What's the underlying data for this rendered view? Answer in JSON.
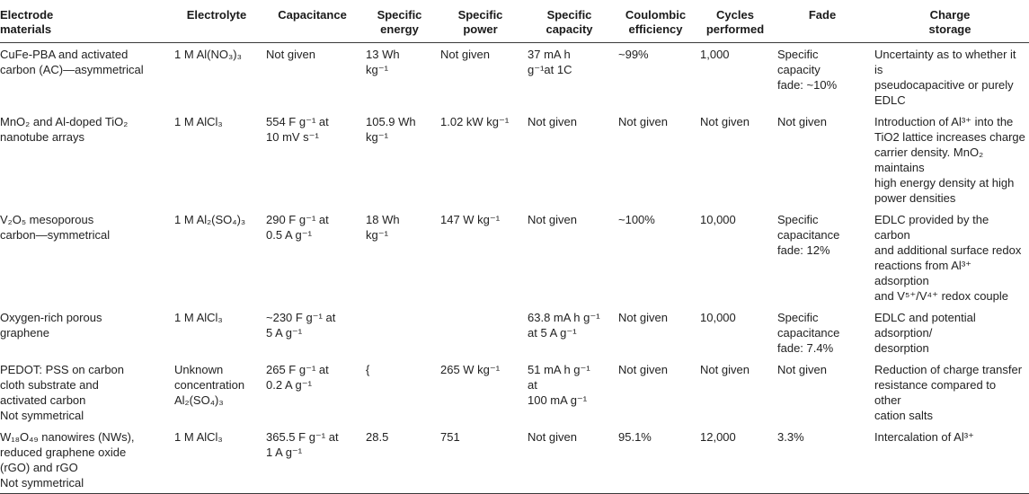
{
  "table": {
    "headers": [
      "Electrode\nmaterials",
      "Electrolyte",
      "Capacitance",
      "Specific\nenergy",
      "Specific\npower",
      "Specific\ncapacity",
      "Coulombic\nefficiency",
      "Cycles\nperformed",
      "Fade",
      "Charge\nstorage"
    ],
    "rows": [
      [
        "CuFe-PBA and activated\ncarbon (AC)—asymmetrical",
        "1 M Al(NO₃)₃",
        "Not given",
        "13 Wh\nkg⁻¹",
        "Not given",
        "37 mA h\ng⁻¹at 1C",
        "~99%",
        "1,000",
        "Specific\ncapacity\nfade: ~10%",
        "Uncertainty as to whether it is\npseudocapacitive or purely\nEDLC"
      ],
      [
        "MnO₂ and Al-doped TiO₂\nnanotube arrays",
        "1 M AlCl₃",
        "554 F g⁻¹ at\n10 mV s⁻¹",
        "105.9 Wh\nkg⁻¹",
        "1.02 kW kg⁻¹",
        "Not given",
        "Not given",
        "Not given",
        "Not given",
        "Introduction of Al³⁺ into the\nTiO2 lattice increases charge\ncarrier density. MnO₂ maintains\nhigh energy density at high\npower densities"
      ],
      [
        "V₂O₅ mesoporous\ncarbon—symmetrical",
        "1 M Al₂(SO₄)₃",
        "290 F g⁻¹ at\n0.5 A g⁻¹",
        "18 Wh\nkg⁻¹",
        "147 W kg⁻¹",
        "Not given",
        "~100%",
        "10,000",
        "Specific\ncapacitance\nfade: 12%",
        "EDLC provided by the carbon\nand additional surface redox\nreactions from Al³⁺ adsorption\nand V⁵⁺/V⁴⁺ redox couple"
      ],
      [
        "Oxygen-rich porous\ngraphene",
        "1 M AlCl₃",
        "~230 F g⁻¹ at\n5 A g⁻¹",
        "",
        "",
        "63.8 mA h g⁻¹\nat 5 A g⁻¹",
        "Not given",
        "10,000",
        "Specific\ncapacitance\nfade: 7.4%",
        "EDLC and potential adsorption/\ndesorption"
      ],
      [
        "PEDOT: PSS on carbon\ncloth substrate and\nactivated carbon\nNot symmetrical",
        "Unknown\nconcentration\nAl₂(SO₄)₃",
        "265 F g⁻¹ at\n0.2 A g⁻¹",
        "{",
        "265 W kg⁻¹",
        "51 mA h g⁻¹\nat\n100 mA g⁻¹",
        "Not given",
        "Not given",
        "Not given",
        "Reduction of charge transfer\nresistance compared to other\ncation salts"
      ],
      [
        "W₁₈O₄₉ nanowires (NWs),\nreduced graphene oxide\n(rGO) and rGO\nNot symmetrical",
        "1 M AlCl₃",
        "365.5 F g⁻¹ at\n1 A g⁻¹",
        "28.5",
        "751",
        "Not given",
        "95.1%",
        "12,000",
        "3.3%",
        "Intercalation of Al³⁺"
      ]
    ]
  }
}
